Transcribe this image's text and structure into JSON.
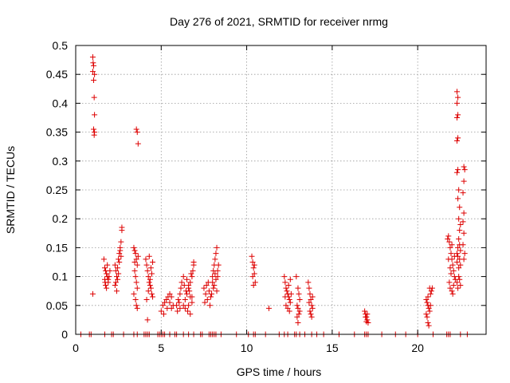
{
  "chart_data": {
    "type": "scatter",
    "title": "Day 276 of 2021, SRMTID for receiver nrmg",
    "xlabel": "GPS time / hours",
    "ylabel": "SRMTID / TECUs",
    "xlim": [
      0,
      24
    ],
    "ylim": [
      0,
      0.5
    ],
    "x_ticks": [
      0,
      5,
      10,
      15,
      20
    ],
    "y_ticks": [
      0,
      0.05,
      0.1,
      0.15,
      0.2,
      0.25,
      0.3,
      0.35,
      0.4,
      0.45,
      0.5
    ],
    "x_tick_labels": [
      "0",
      "5",
      "10",
      "15",
      "20"
    ],
    "y_tick_labels": [
      "0",
      "0.05",
      "0.1",
      "0.15",
      "0.2",
      "0.25",
      "0.3",
      "0.35",
      "0.4",
      "0.45",
      "0.5"
    ],
    "grid": true,
    "marker": "+",
    "series": [
      {
        "name": "SRMTID",
        "color": "#dd0000",
        "points": [
          [
            1.0,
            0.48
          ],
          [
            1.02,
            0.47
          ],
          [
            1.05,
            0.465
          ],
          [
            1.0,
            0.455
          ],
          [
            1.1,
            0.45
          ],
          [
            1.05,
            0.44
          ],
          [
            1.08,
            0.41
          ],
          [
            1.1,
            0.38
          ],
          [
            1.05,
            0.355
          ],
          [
            1.1,
            0.35
          ],
          [
            1.08,
            0.345
          ],
          [
            1.0,
            0.07
          ],
          [
            1.65,
            0.13
          ],
          [
            1.7,
            0.115
          ],
          [
            1.75,
            0.11
          ],
          [
            1.8,
            0.105
          ],
          [
            1.85,
            0.1
          ],
          [
            1.7,
            0.095
          ],
          [
            1.9,
            0.09
          ],
          [
            1.75,
            0.085
          ],
          [
            1.8,
            0.08
          ],
          [
            1.95,
            0.1
          ],
          [
            2.0,
            0.11
          ],
          [
            1.85,
            0.12
          ],
          [
            1.9,
            0.095
          ],
          [
            1.72,
            0.09
          ],
          [
            2.3,
            0.12
          ],
          [
            2.35,
            0.11
          ],
          [
            2.4,
            0.1
          ],
          [
            2.45,
            0.095
          ],
          [
            2.5,
            0.13
          ],
          [
            2.55,
            0.14
          ],
          [
            2.6,
            0.15
          ],
          [
            2.65,
            0.16
          ],
          [
            2.7,
            0.18
          ],
          [
            2.7,
            0.185
          ],
          [
            2.6,
            0.145
          ],
          [
            2.55,
            0.125
          ],
          [
            2.45,
            0.115
          ],
          [
            2.35,
            0.09
          ],
          [
            2.3,
            0.085
          ],
          [
            2.4,
            0.075
          ],
          [
            2.5,
            0.105
          ],
          [
            2.65,
            0.135
          ],
          [
            3.4,
            0.15
          ],
          [
            3.45,
            0.145
          ],
          [
            3.5,
            0.14
          ],
          [
            3.55,
            0.13
          ],
          [
            3.6,
            0.12
          ],
          [
            3.45,
            0.11
          ],
          [
            3.5,
            0.1
          ],
          [
            3.55,
            0.09
          ],
          [
            3.6,
            0.08
          ],
          [
            3.4,
            0.07
          ],
          [
            3.5,
            0.06
          ],
          [
            3.55,
            0.05
          ],
          [
            3.6,
            0.045
          ],
          [
            3.55,
            0.355
          ],
          [
            3.6,
            0.35
          ],
          [
            3.65,
            0.33
          ],
          [
            3.45,
            0.125
          ],
          [
            3.65,
            0.135
          ],
          [
            4.1,
            0.13
          ],
          [
            4.15,
            0.12
          ],
          [
            4.2,
            0.11
          ],
          [
            4.25,
            0.1
          ],
          [
            4.3,
            0.09
          ],
          [
            4.35,
            0.085
          ],
          [
            4.4,
            0.08
          ],
          [
            4.45,
            0.07
          ],
          [
            4.5,
            0.065
          ],
          [
            4.15,
            0.06
          ],
          [
            4.25,
            0.075
          ],
          [
            4.35,
            0.095
          ],
          [
            4.45,
            0.105
          ],
          [
            4.5,
            0.125
          ],
          [
            4.2,
            0.025
          ],
          [
            4.3,
            0.135
          ],
          [
            4.4,
            0.115
          ],
          [
            5.0,
            0.04
          ],
          [
            5.1,
            0.05
          ],
          [
            5.2,
            0.055
          ],
          [
            5.3,
            0.06
          ],
          [
            5.4,
            0.065
          ],
          [
            5.5,
            0.055
          ],
          [
            5.6,
            0.045
          ],
          [
            5.7,
            0.05
          ],
          [
            5.15,
            0.035
          ],
          [
            5.35,
            0.045
          ],
          [
            5.5,
            0.07
          ],
          [
            5.6,
            0.065
          ],
          [
            5.9,
            0.05
          ],
          [
            6.0,
            0.06
          ],
          [
            6.1,
            0.07
          ],
          [
            6.15,
            0.08
          ],
          [
            6.2,
            0.09
          ],
          [
            6.05,
            0.055
          ],
          [
            5.95,
            0.04
          ],
          [
            6.1,
            0.045
          ],
          [
            6.3,
            0.05
          ],
          [
            6.4,
            0.06
          ],
          [
            6.5,
            0.07
          ],
          [
            6.6,
            0.08
          ],
          [
            6.7,
            0.09
          ],
          [
            6.8,
            0.1
          ],
          [
            6.85,
            0.11
          ],
          [
            6.9,
            0.12
          ],
          [
            6.5,
            0.095
          ],
          [
            6.6,
            0.085
          ],
          [
            6.7,
            0.065
          ],
          [
            6.8,
            0.055
          ],
          [
            6.4,
            0.045
          ],
          [
            6.55,
            0.04
          ],
          [
            6.65,
            0.075
          ],
          [
            6.75,
            0.105
          ],
          [
            6.9,
            0.125
          ],
          [
            6.35,
            0.085
          ],
          [
            6.45,
            0.075
          ],
          [
            6.6,
            0.05
          ],
          [
            6.7,
            0.035
          ],
          [
            6.8,
            0.065
          ],
          [
            6.3,
            0.1
          ],
          [
            7.5,
            0.08
          ],
          [
            7.6,
            0.07
          ],
          [
            7.7,
            0.06
          ],
          [
            7.8,
            0.075
          ],
          [
            7.9,
            0.065
          ],
          [
            7.55,
            0.055
          ],
          [
            7.65,
            0.085
          ],
          [
            7.85,
            0.05
          ],
          [
            7.75,
            0.09
          ],
          [
            7.95,
            0.07
          ],
          [
            8.0,
            0.1
          ],
          [
            8.05,
            0.11
          ],
          [
            8.1,
            0.12
          ],
          [
            8.15,
            0.13
          ],
          [
            8.2,
            0.14
          ],
          [
            8.25,
            0.15
          ],
          [
            8.0,
            0.09
          ],
          [
            8.1,
            0.085
          ],
          [
            8.2,
            0.095
          ],
          [
            8.3,
            0.1
          ],
          [
            8.35,
            0.12
          ],
          [
            8.3,
            0.11
          ],
          [
            8.15,
            0.105
          ],
          [
            8.05,
            0.08
          ],
          [
            8.25,
            0.075
          ],
          [
            10.3,
            0.135
          ],
          [
            10.35,
            0.125
          ],
          [
            10.4,
            0.115
          ],
          [
            10.45,
            0.105
          ],
          [
            10.5,
            0.09
          ],
          [
            10.4,
            0.085
          ],
          [
            10.35,
            0.1
          ],
          [
            10.45,
            0.12
          ],
          [
            11.3,
            0.045
          ],
          [
            12.2,
            0.1
          ],
          [
            12.25,
            0.09
          ],
          [
            12.3,
            0.08
          ],
          [
            12.35,
            0.075
          ],
          [
            12.4,
            0.07
          ],
          [
            12.45,
            0.065
          ],
          [
            12.5,
            0.06
          ],
          [
            12.55,
            0.055
          ],
          [
            12.3,
            0.05
          ],
          [
            12.4,
            0.045
          ],
          [
            12.5,
            0.04
          ],
          [
            12.6,
            0.07
          ],
          [
            12.25,
            0.065
          ],
          [
            12.45,
            0.085
          ],
          [
            12.55,
            0.095
          ],
          [
            12.9,
            0.1
          ],
          [
            13.0,
            0.08
          ],
          [
            13.05,
            0.07
          ],
          [
            13.1,
            0.06
          ],
          [
            12.95,
            0.05
          ],
          [
            13.0,
            0.045
          ],
          [
            13.1,
            0.04
          ],
          [
            13.05,
            0.035
          ],
          [
            12.95,
            0.03
          ],
          [
            13.0,
            0.02
          ],
          [
            13.6,
            0.09
          ],
          [
            13.65,
            0.08
          ],
          [
            13.7,
            0.07
          ],
          [
            13.75,
            0.06
          ],
          [
            13.8,
            0.05
          ],
          [
            13.85,
            0.045
          ],
          [
            13.7,
            0.04
          ],
          [
            13.75,
            0.035
          ],
          [
            13.8,
            0.03
          ],
          [
            13.65,
            0.055
          ],
          [
            13.85,
            0.065
          ],
          [
            16.9,
            0.04
          ],
          [
            16.95,
            0.035
          ],
          [
            17.0,
            0.03
          ],
          [
            17.05,
            0.025
          ],
          [
            17.1,
            0.02
          ],
          [
            16.95,
            0.03
          ],
          [
            17.05,
            0.035
          ],
          [
            17.0,
            0.022
          ],
          [
            20.5,
            0.06
          ],
          [
            20.55,
            0.055
          ],
          [
            20.6,
            0.05
          ],
          [
            20.65,
            0.045
          ],
          [
            20.7,
            0.04
          ],
          [
            20.75,
            0.07
          ],
          [
            20.8,
            0.075
          ],
          [
            20.6,
            0.065
          ],
          [
            20.5,
            0.035
          ],
          [
            20.55,
            0.03
          ],
          [
            20.6,
            0.02
          ],
          [
            20.65,
            0.015
          ],
          [
            20.7,
            0.08
          ],
          [
            20.85,
            0.08
          ],
          [
            20.75,
            0.05
          ],
          [
            21.8,
            0.17
          ],
          [
            21.85,
            0.16
          ],
          [
            21.9,
            0.15
          ],
          [
            21.95,
            0.14
          ],
          [
            22.0,
            0.13
          ],
          [
            22.05,
            0.12
          ],
          [
            22.1,
            0.11
          ],
          [
            22.15,
            0.1
          ],
          [
            21.85,
            0.09
          ],
          [
            21.9,
            0.08
          ],
          [
            22.0,
            0.075
          ],
          [
            22.1,
            0.085
          ],
          [
            22.2,
            0.095
          ],
          [
            21.8,
            0.13
          ],
          [
            21.95,
            0.105
          ],
          [
            22.05,
            0.07
          ],
          [
            22.15,
            0.135
          ],
          [
            21.75,
            0.165
          ],
          [
            21.9,
            0.115
          ],
          [
            22.0,
            0.155
          ],
          [
            22.3,
            0.42
          ],
          [
            22.35,
            0.41
          ],
          [
            22.3,
            0.4
          ],
          [
            22.35,
            0.38
          ],
          [
            22.3,
            0.375
          ],
          [
            22.35,
            0.34
          ],
          [
            22.3,
            0.335
          ],
          [
            22.35,
            0.285
          ],
          [
            22.3,
            0.28
          ],
          [
            22.4,
            0.25
          ],
          [
            22.35,
            0.235
          ],
          [
            22.45,
            0.22
          ],
          [
            22.4,
            0.2
          ],
          [
            22.5,
            0.19
          ],
          [
            22.45,
            0.18
          ],
          [
            22.4,
            0.165
          ],
          [
            22.35,
            0.15
          ],
          [
            22.3,
            0.14
          ],
          [
            22.45,
            0.13
          ],
          [
            22.5,
            0.12
          ],
          [
            22.4,
            0.1
          ],
          [
            22.3,
            0.09
          ],
          [
            22.35,
            0.08
          ],
          [
            22.5,
            0.085
          ],
          [
            22.45,
            0.095
          ],
          [
            22.4,
            0.115
          ],
          [
            22.3,
            0.125
          ],
          [
            22.35,
            0.135
          ],
          [
            22.5,
            0.145
          ],
          [
            22.45,
            0.155
          ],
          [
            22.7,
            0.29
          ],
          [
            22.75,
            0.285
          ],
          [
            22.7,
            0.265
          ],
          [
            22.65,
            0.245
          ],
          [
            22.7,
            0.21
          ],
          [
            22.65,
            0.195
          ],
          [
            22.7,
            0.175
          ],
          [
            22.65,
            0.155
          ],
          [
            22.75,
            0.14
          ],
          [
            22.7,
            0.13
          ]
        ],
        "zero_x": [
          0.3,
          0.8,
          0.9,
          1.7,
          2.1,
          2.2,
          2.8,
          3.4,
          3.6,
          4.0,
          4.1,
          4.2,
          4.3,
          4.8,
          4.9,
          5.0,
          5.1,
          5.2,
          5.5,
          5.8,
          5.9,
          6.3,
          6.6,
          6.9,
          7.3,
          7.4,
          7.8,
          7.9,
          8.0,
          8.1,
          8.2,
          8.5,
          9.4,
          10.1,
          10.4,
          10.5,
          11.1,
          11.9,
          12.2,
          12.4,
          12.8,
          12.9,
          13.1,
          13.4,
          13.8,
          14.1,
          14.5,
          15.4,
          16.3,
          16.9,
          17.0,
          17.1,
          17.9,
          18.7,
          19.3,
          20.0,
          20.9,
          21.7,
          21.8,
          21.9,
          22.5,
          22.9
        ]
      }
    ]
  }
}
